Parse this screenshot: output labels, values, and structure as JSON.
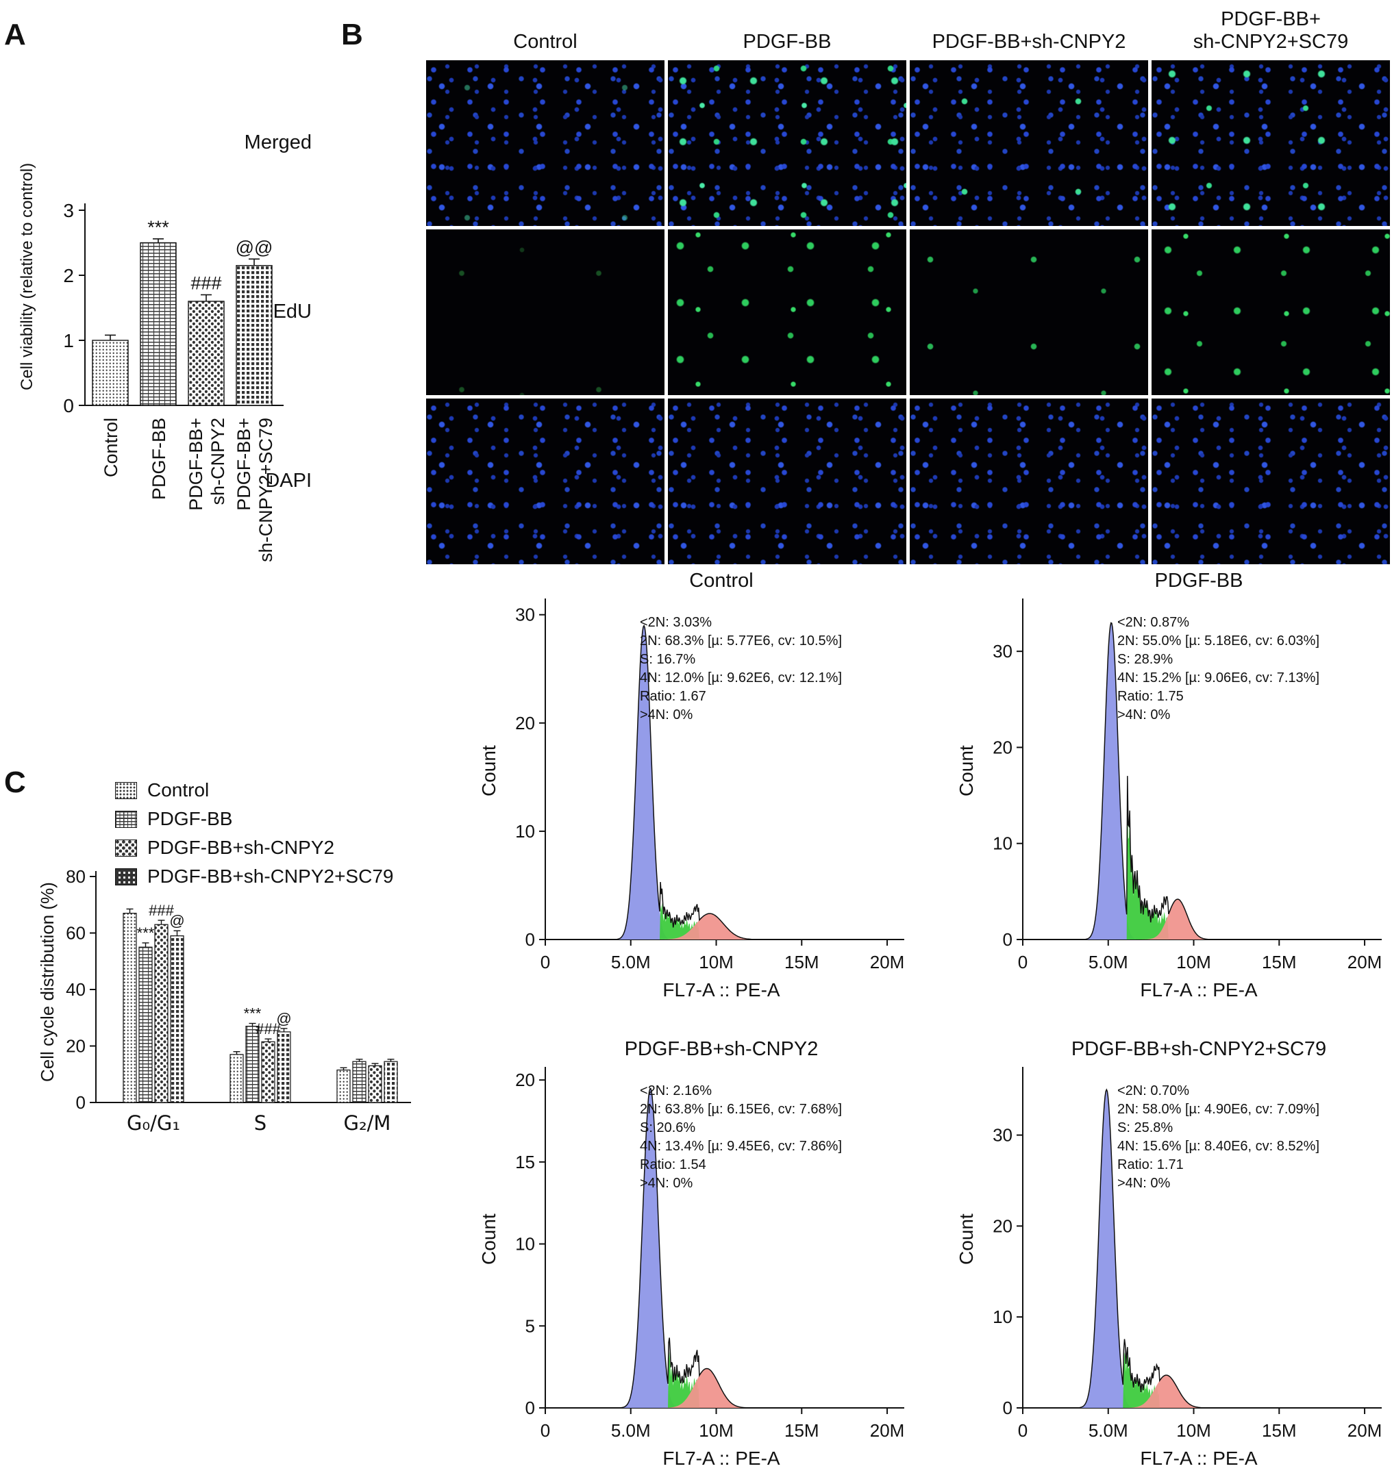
{
  "figure": {
    "panel_a_label": "A",
    "panel_b_label": "B",
    "panel_c_label": "C"
  },
  "panel_b": {
    "col_headers": [
      "Control",
      "PDGF-BB",
      "PDGF-BB+sh-CNPY2",
      "PDGF-BB+\nsh-CNPY2+SC79"
    ],
    "row_labels": [
      "Merged",
      "EdU",
      "DAPI"
    ]
  },
  "chart_data": [
    {
      "id": "cell-viability",
      "type": "bar",
      "ylabel": "Cell viability (relative to control)",
      "ylim": [
        0,
        3
      ],
      "yticks": [
        0,
        1,
        2,
        3
      ],
      "categories": [
        "Control",
        "PDGF-BB",
        "PDGF-BB+sh-CNPY2",
        "PDGF-BB+sh-CNPY2+SC79"
      ],
      "category_lines": [
        [
          "Control"
        ],
        [
          "PDGF-BB"
        ],
        [
          "PDGF-BB+",
          "sh-CNPY2"
        ],
        [
          "PDGF-BB+",
          "sh-CNPY2+SC79"
        ]
      ],
      "values": [
        1.0,
        2.5,
        1.6,
        2.15
      ],
      "errors": [
        0.08,
        0.06,
        0.1,
        0.1
      ],
      "annotations": [
        "",
        "***",
        "###",
        "@@"
      ]
    },
    {
      "id": "cell-cycle-distribution",
      "type": "bar-grouped",
      "ylabel": "Cell cycle distribution (%)",
      "ylim": [
        0,
        80
      ],
      "yticks": [
        0,
        20,
        40,
        60,
        80
      ],
      "groups": [
        "G₀/G₁",
        "S",
        "G₂/M"
      ],
      "series": [
        {
          "name": "Control",
          "values": [
            67,
            17,
            11.5
          ],
          "errors": [
            1.5,
            1,
            0.8
          ]
        },
        {
          "name": "PDGF-BB",
          "values": [
            55,
            27,
            14.5
          ],
          "errors": [
            1.5,
            1,
            0.8
          ]
        },
        {
          "name": "PDGF-BB+sh-CNPY2",
          "values": [
            63,
            21.5,
            13
          ],
          "errors": [
            1.5,
            1,
            0.8
          ]
        },
        {
          "name": "PDGF-BB+sh-CNPY2+SC79",
          "values": [
            59,
            25,
            14.5
          ],
          "errors": [
            1.8,
            1.2,
            0.8
          ]
        }
      ],
      "annotations": [
        [
          "",
          "***",
          "###",
          "@"
        ],
        [
          "",
          "***",
          "###",
          "@"
        ],
        [
          "",
          "",
          "",
          ""
        ]
      ]
    },
    {
      "id": "flow-control",
      "type": "histogram",
      "title": "Control",
      "xlabel": "FL7-A :: PE-A",
      "ylabel": "Count",
      "xtick_labels": [
        "0",
        "5.0M",
        "10M",
        "15M",
        "20M"
      ],
      "xtick_values": [
        0,
        5,
        10,
        15,
        20
      ],
      "xmax": 21,
      "yticks": [
        0,
        10,
        20,
        30
      ],
      "ymax": 31.5,
      "g1": {
        "mu": 5.77,
        "sigma": 0.42,
        "h": 29
      },
      "s": {
        "from": 6.7,
        "to": 9.0,
        "start_h": 3.2,
        "end_h": 1.3
      },
      "g2": {
        "mu": 9.62,
        "sigma": 0.8,
        "h": 2.4
      },
      "stats": [
        "<2N: 3.03%",
        "2N: 68.3% [µ: 5.77E6, cv: 10.5%]",
        "S: 16.7%",
        "4N: 12.0% [µ: 9.62E6, cv: 12.1%]",
        "Ratio: 1.67",
        ">4N: 0%"
      ]
    },
    {
      "id": "flow-pdgf-bb",
      "type": "histogram",
      "title": "PDGF-BB",
      "xlabel": "FL7-A :: PE-A",
      "ylabel": "Count",
      "xtick_labels": [
        "0",
        "5.0M",
        "10M",
        "15M",
        "20M"
      ],
      "xtick_values": [
        0,
        5,
        10,
        15,
        20
      ],
      "xmax": 21,
      "yticks": [
        0,
        10,
        20,
        30
      ],
      "ymax": 35.5,
      "g1": {
        "mu": 5.18,
        "sigma": 0.4,
        "h": 33
      },
      "s": {
        "from": 6.1,
        "to": 8.5,
        "start_h": 12,
        "end_h": 2.0
      },
      "g2": {
        "mu": 9.06,
        "sigma": 0.55,
        "h": 4.2
      },
      "stats": [
        "<2N: 0.87%",
        "2N: 55.0% [µ: 5.18E6, cv: 6.03%]",
        "S: 28.9%",
        "4N: 15.2% [µ: 9.06E6, cv: 7.13%]",
        "Ratio: 1.75",
        ">4N: 0%"
      ]
    },
    {
      "id": "flow-sh-cnpy2",
      "type": "histogram",
      "title": "PDGF-BB+sh-CNPY2",
      "xlabel": "FL7-A :: PE-A",
      "ylabel": "Count",
      "xtick_labels": [
        "0",
        "5.0M",
        "10M",
        "15M",
        "20M"
      ],
      "xtick_values": [
        0,
        5,
        10,
        15,
        20
      ],
      "xmax": 21,
      "yticks": [
        0,
        5,
        10,
        15,
        20
      ],
      "ymax": 20.8,
      "g1": {
        "mu": 6.15,
        "sigma": 0.45,
        "h": 19.5
      },
      "s": {
        "from": 7.2,
        "to": 9.0,
        "start_h": 2.8,
        "end_h": 1.4
      },
      "g2": {
        "mu": 9.45,
        "sigma": 0.7,
        "h": 2.4
      },
      "stats": [
        "<2N: 2.16%",
        "2N: 63.8% [µ: 6.15E6, cv: 7.68%]",
        "S: 20.6%",
        "4N: 13.4% [µ: 9.45E6, cv: 7.86%]",
        "Ratio: 1.54",
        ">4N: 0%"
      ]
    },
    {
      "id": "flow-sc79",
      "type": "histogram",
      "title": "PDGF-BB+sh-CNPY2+SC79",
      "xlabel": "FL7-A :: PE-A",
      "ylabel": "Count",
      "xtick_labels": [
        "0",
        "5.0M",
        "10M",
        "15M",
        "20M"
      ],
      "xtick_values": [
        0,
        5,
        10,
        15,
        20
      ],
      "xmax": 21,
      "yticks": [
        0,
        10,
        20,
        30
      ],
      "ymax": 37.5,
      "g1": {
        "mu": 4.9,
        "sigma": 0.42,
        "h": 35
      },
      "s": {
        "from": 5.9,
        "to": 8.0,
        "start_h": 6.5,
        "end_h": 1.8
      },
      "g2": {
        "mu": 8.4,
        "sigma": 0.65,
        "h": 3.6
      },
      "stats": [
        "<2N: 0.70%",
        "2N: 58.0% [µ: 4.90E6, cv: 7.09%]",
        "S: 25.8%",
        "4N: 15.6% [µ: 8.40E6, cv: 8.52%]",
        "Ratio: 1.71",
        ">4N: 0%"
      ]
    }
  ]
}
